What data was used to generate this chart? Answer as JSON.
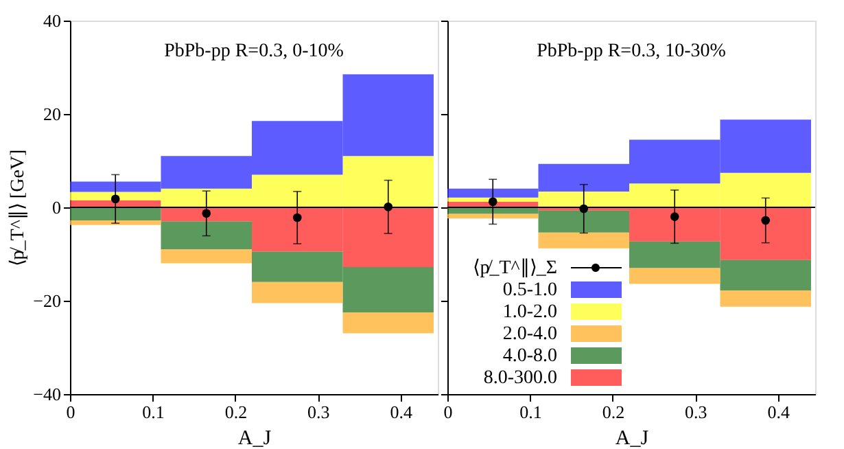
{
  "chart_data": [
    {
      "type": "bar",
      "stacked": true,
      "title": "PbPb-pp R=0.3, 0-10%",
      "xlabel": "A_J",
      "ylabel": "⟨p̸_T^∥⟩ [GeV]",
      "x": [
        0.055,
        0.165,
        0.275,
        0.385
      ],
      "xlim": [
        0,
        0.445
      ],
      "ylim": [
        -40,
        40
      ],
      "xticks": [
        0,
        0.1,
        0.2,
        0.3,
        0.4
      ],
      "yticks": [
        -40,
        -20,
        0,
        20,
        40
      ],
      "grid": false,
      "ref_lines": [
        {
          "axis": "y",
          "value": 0,
          "color": "#000000"
        }
      ],
      "series": [
        {
          "color": "#ff3333",
          "values": [
            1.5,
            -3,
            -9.5,
            -12.8
          ]
        },
        {
          "color": "#338033",
          "values": [
            -2.8,
            -6,
            -6.5,
            -9.7
          ]
        },
        {
          "color": "#ffb333",
          "values": [
            -1,
            -3,
            -4.5,
            -4.5
          ]
        },
        {
          "color": "#ffff33",
          "values": [
            1.8,
            4,
            7,
            11
          ]
        },
        {
          "color": "#3333ff",
          "values": [
            2.2,
            7,
            11.5,
            17.5
          ]
        },
        {
          "type": "scatter",
          "marker": "circle",
          "color": "#000000",
          "values": [
            1.8,
            -1.3,
            -2.2,
            0.1
          ],
          "errors": [
            5.2,
            4.8,
            5.6,
            5.7
          ]
        }
      ]
    },
    {
      "type": "bar",
      "stacked": true,
      "title": "PbPb-pp R=0.3, 10-30%",
      "xlabel": "A_J",
      "x": [
        0.055,
        0.165,
        0.275,
        0.385
      ],
      "xlim": [
        0,
        0.445
      ],
      "ylim": [
        -40,
        40
      ],
      "xticks": [
        0,
        0.1,
        0.2,
        0.3,
        0.4
      ],
      "yticks": [
        -40,
        -20,
        0,
        20,
        40
      ],
      "tick_labels": "x",
      "grid": false,
      "legend": "bottom left",
      "ref_lines": [
        {
          "axis": "y",
          "value": 0,
          "color": "#000000"
        }
      ],
      "series": [
        {
          "name": "8.0-300.0",
          "color": "#ff3333",
          "values": [
            1.2,
            -0.7,
            -7.3,
            -11.3
          ]
        },
        {
          "name": "4.0-8.0",
          "color": "#338033",
          "values": [
            -1.4,
            -4.7,
            -5.7,
            -6.5
          ]
        },
        {
          "name": "2.0-4.0",
          "color": "#ffb333",
          "values": [
            -1,
            -3.4,
            -3.4,
            -3.5
          ]
        },
        {
          "name": "1.0-2.0",
          "color": "#ffff33",
          "values": [
            0.9,
            3.4,
            5.1,
            7.4
          ]
        },
        {
          "name": "0.5-1.0",
          "color": "#3333ff",
          "values": [
            1.9,
            5.9,
            9.4,
            11.4
          ]
        },
        {
          "name": "⟨p̸_T^∥⟩_Σ",
          "type": "scatter",
          "marker": "circle",
          "color": "#000000",
          "values": [
            1.2,
            -0.3,
            -2.0,
            -2.8
          ],
          "errors": [
            4.8,
            5.2,
            5.7,
            4.8
          ]
        }
      ]
    }
  ]
}
